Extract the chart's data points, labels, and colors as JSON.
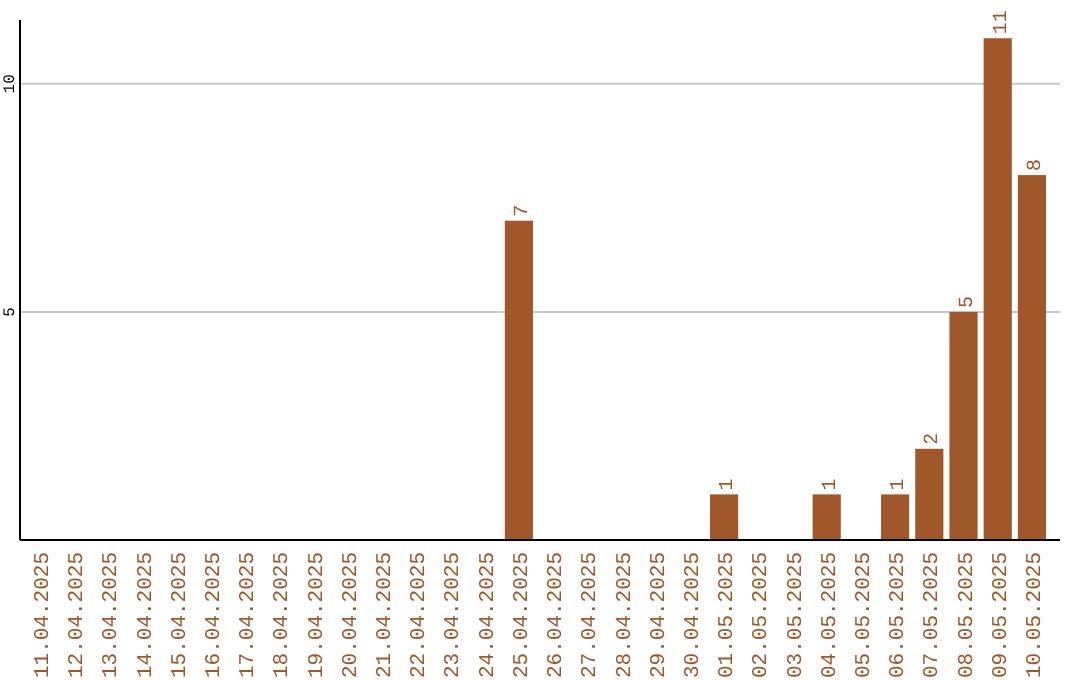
{
  "chart_data": {
    "type": "bar",
    "categories": [
      "11.04.2025",
      "12.04.2025",
      "13.04.2025",
      "14.04.2025",
      "15.04.2025",
      "16.04.2025",
      "17.04.2025",
      "18.04.2025",
      "19.04.2025",
      "20.04.2025",
      "21.04.2025",
      "22.04.2025",
      "23.04.2025",
      "24.04.2025",
      "25.04.2025",
      "26.04.2025",
      "27.04.2025",
      "28.04.2025",
      "29.04.2025",
      "30.04.2025",
      "01.05.2025",
      "02.05.2025",
      "03.05.2025",
      "04.05.2025",
      "05.05.2025",
      "06.05.2025",
      "07.05.2025",
      "08.05.2025",
      "09.05.2025",
      "10.05.2025"
    ],
    "values": [
      0,
      0,
      0,
      0,
      0,
      0,
      0,
      0,
      0,
      0,
      0,
      0,
      0,
      0,
      7,
      0,
      0,
      0,
      0,
      0,
      1,
      0,
      0,
      1,
      0,
      1,
      2,
      5,
      11,
      8
    ],
    "value_labels": [
      null,
      null,
      null,
      null,
      null,
      null,
      null,
      null,
      null,
      null,
      null,
      null,
      null,
      null,
      "7",
      null,
      null,
      null,
      null,
      null,
      "1",
      null,
      null,
      "1",
      null,
      "1",
      "2",
      "5",
      "11",
      "8"
    ],
    "color": "#a0582a",
    "ylim": [
      0,
      11.4
    ],
    "yticks": [
      5,
      10
    ],
    "grid": "y"
  }
}
